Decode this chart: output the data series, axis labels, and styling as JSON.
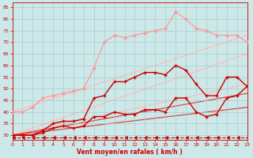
{
  "background_color": "#cce8e8",
  "grid_color": "#aacccc",
  "xlabel": "Vent moyen/en rafales ( km/h )",
  "xlim": [
    0,
    23
  ],
  "ylim": [
    28,
    87
  ],
  "yticks": [
    30,
    35,
    40,
    45,
    50,
    55,
    60,
    65,
    70,
    75,
    80,
    85
  ],
  "xticks": [
    0,
    1,
    2,
    3,
    4,
    5,
    6,
    7,
    8,
    9,
    10,
    11,
    12,
    13,
    14,
    15,
    16,
    17,
    18,
    19,
    20,
    21,
    22,
    23
  ],
  "series": [
    {
      "x": [
        0,
        1,
        2,
        3,
        4,
        5,
        6,
        7,
        8,
        9,
        10,
        11,
        12,
        13,
        14,
        15,
        16,
        17,
        18,
        19,
        20,
        21,
        22,
        23
      ],
      "y": [
        40,
        40,
        42,
        46,
        47,
        48,
        49,
        50,
        59,
        70,
        73,
        72,
        73,
        74,
        75,
        76,
        83,
        80,
        76,
        75,
        73,
        73,
        73,
        70
      ],
      "color": "#ff9999",
      "lw": 0.9,
      "marker": "o",
      "ms": 2.0,
      "linestyle": "-",
      "zorder": 3
    },
    {
      "x": [
        0,
        23
      ],
      "y": [
        40,
        73
      ],
      "color": "#ffbbbb",
      "lw": 0.9,
      "marker": null,
      "ms": 0,
      "linestyle": "-",
      "zorder": 1
    },
    {
      "x": [
        0,
        23
      ],
      "y": [
        30,
        65
      ],
      "color": "#ffbbbb",
      "lw": 0.9,
      "marker": null,
      "ms": 0,
      "linestyle": "-",
      "zorder": 1
    },
    {
      "x": [
        0,
        23
      ],
      "y": [
        30,
        52
      ],
      "color": "#ffbbbb",
      "lw": 0.9,
      "marker": null,
      "ms": 0,
      "linestyle": "-",
      "zorder": 1
    },
    {
      "x": [
        0,
        23
      ],
      "y": [
        30,
        48
      ],
      "color": "#dd4444",
      "lw": 0.9,
      "marker": null,
      "ms": 0,
      "linestyle": "-",
      "zorder": 1
    },
    {
      "x": [
        0,
        23
      ],
      "y": [
        30,
        42
      ],
      "color": "#dd4444",
      "lw": 0.9,
      "marker": null,
      "ms": 0,
      "linestyle": "-",
      "zorder": 1
    },
    {
      "x": [
        0,
        1,
        2,
        3,
        4,
        5,
        6,
        7,
        8,
        9,
        10,
        11,
        12,
        13,
        14,
        15,
        16,
        17,
        18,
        19,
        20,
        21,
        22,
        23
      ],
      "y": [
        30,
        30,
        30,
        32,
        35,
        36,
        36,
        37,
        46,
        47,
        53,
        53,
        55,
        57,
        57,
        56,
        60,
        58,
        52,
        47,
        47,
        55,
        55,
        51
      ],
      "color": "#cc0000",
      "lw": 1.0,
      "marker": "+",
      "ms": 3.0,
      "linestyle": "-",
      "zorder": 4
    },
    {
      "x": [
        0,
        1,
        2,
        3,
        4,
        5,
        6,
        7,
        8,
        9,
        10,
        11,
        12,
        13,
        14,
        15,
        16,
        17,
        18,
        19,
        20,
        21,
        22,
        23
      ],
      "y": [
        30,
        30,
        30,
        31,
        33,
        34,
        33,
        34,
        38,
        38,
        40,
        39,
        39,
        41,
        41,
        40,
        46,
        46,
        40,
        38,
        39,
        46,
        47,
        51
      ],
      "color": "#cc0000",
      "lw": 1.0,
      "marker": "+",
      "ms": 3.0,
      "linestyle": "-",
      "zorder": 4
    },
    {
      "x": [
        0,
        1,
        2,
        3,
        4,
        5,
        6,
        7,
        8,
        9,
        10,
        11,
        12,
        13,
        14,
        15,
        16,
        17,
        18,
        19,
        20,
        21,
        22,
        23
      ],
      "y": [
        29,
        29,
        29,
        29,
        29,
        29,
        29,
        29,
        29,
        29,
        29,
        29,
        29,
        29,
        29,
        29,
        29,
        29,
        29,
        29,
        29,
        29,
        29,
        29
      ],
      "color": "#cc0000",
      "lw": 0.8,
      "marker": 4,
      "ms": 3,
      "linestyle": "--",
      "zorder": 2
    }
  ]
}
